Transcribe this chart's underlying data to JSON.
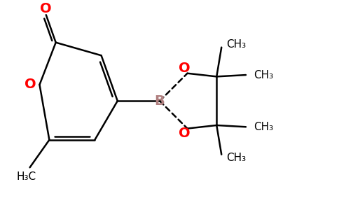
{
  "bg_color": "#ffffff",
  "bond_color": "#000000",
  "oxygen_color": "#ff0000",
  "boron_color": "#b08080",
  "figsize": [
    4.84,
    3.0
  ],
  "dpi": 100,
  "line_width": 1.8,
  "font_size_atom": 13,
  "font_size_methyl": 11,
  "xlim": [
    0,
    10
  ],
  "ylim": [
    0,
    6.2
  ]
}
